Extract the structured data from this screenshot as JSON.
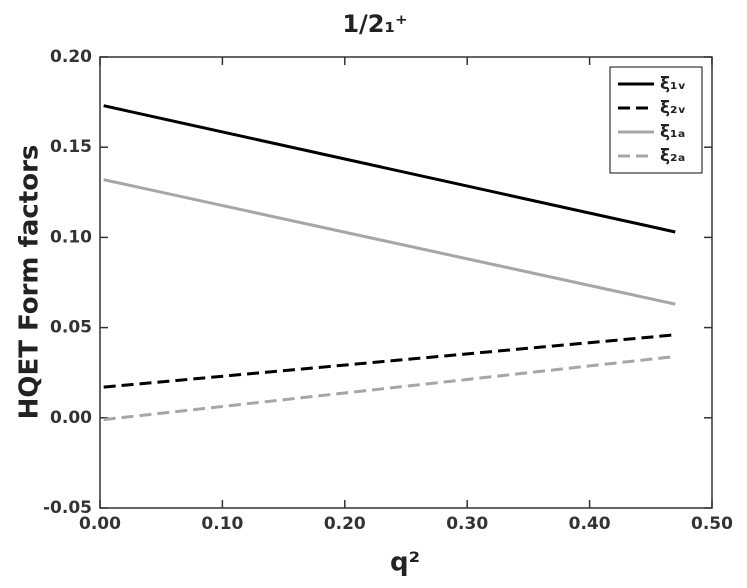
{
  "chart_data": {
    "type": "line",
    "title": "1/2₁⁺",
    "x_label": "q²",
    "y_label": "HQET Form factors",
    "xlim": [
      0,
      0.5
    ],
    "ylim": [
      -0.05,
      0.2
    ],
    "xticks": [
      {
        "value": 0,
        "label": "0.00"
      },
      {
        "value": 0.1,
        "label": "0.10"
      },
      {
        "value": 0.2,
        "label": "0.20"
      },
      {
        "value": 0.3,
        "label": "0.30"
      },
      {
        "value": 0.4,
        "label": "0.40"
      },
      {
        "value": 0.5,
        "label": "0.50"
      }
    ],
    "yticks": [
      {
        "value": -0.05,
        "label": "-0.05"
      },
      {
        "value": 0,
        "label": "0.00"
      },
      {
        "value": 0.05,
        "label": "0.05"
      },
      {
        "value": 0.1,
        "label": "0.10"
      },
      {
        "value": 0.15,
        "label": "0.15"
      },
      {
        "value": 0.2,
        "label": "0.20"
      }
    ],
    "x": [
      0.003,
      0.47
    ],
    "legend": "upper right",
    "series": [
      {
        "name": "ξ₁ᵥ",
        "color": "#000000",
        "dashed": false,
        "values": [
          0.173,
          0.103
        ]
      },
      {
        "name": "ξ₂ᵥ",
        "color": "#000000",
        "dashed": true,
        "values": [
          0.017,
          0.046
        ]
      },
      {
        "name": "ξ₁ₐ",
        "color": "#a6a6a6",
        "dashed": false,
        "values": [
          0.132,
          0.063
        ]
      },
      {
        "name": "ξ₂ₐ",
        "color": "#a6a6a6",
        "dashed": true,
        "values": [
          -0.001,
          0.034
        ]
      }
    ]
  }
}
